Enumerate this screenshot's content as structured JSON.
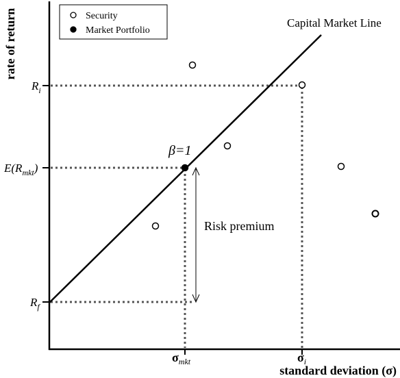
{
  "legend": {
    "security_label": "Security",
    "market_portfolio_label": "Market Portfolio"
  },
  "line_label": "Capital Market Line",
  "beta_label": "β=1",
  "risk_premium_label": "Risk premium",
  "axes": {
    "y_label": "rate of return",
    "x_label": "standard deviation (σ)"
  },
  "y_ticks": {
    "ri": {
      "base": "R",
      "sub": "i"
    },
    "emkt": {
      "prefix": "E(R",
      "sub": "mkt",
      "suffix": ")"
    },
    "rf": {
      "base": "R",
      "sub": "f"
    }
  },
  "x_ticks": {
    "sigma_mkt": {
      "base": "σ",
      "sub": "mkt"
    },
    "sigma_i": {
      "base": "σ",
      "sub": "i"
    }
  },
  "colors": {
    "ink": "#000000",
    "dotted": "#555555",
    "background": "#ffffff"
  }
}
